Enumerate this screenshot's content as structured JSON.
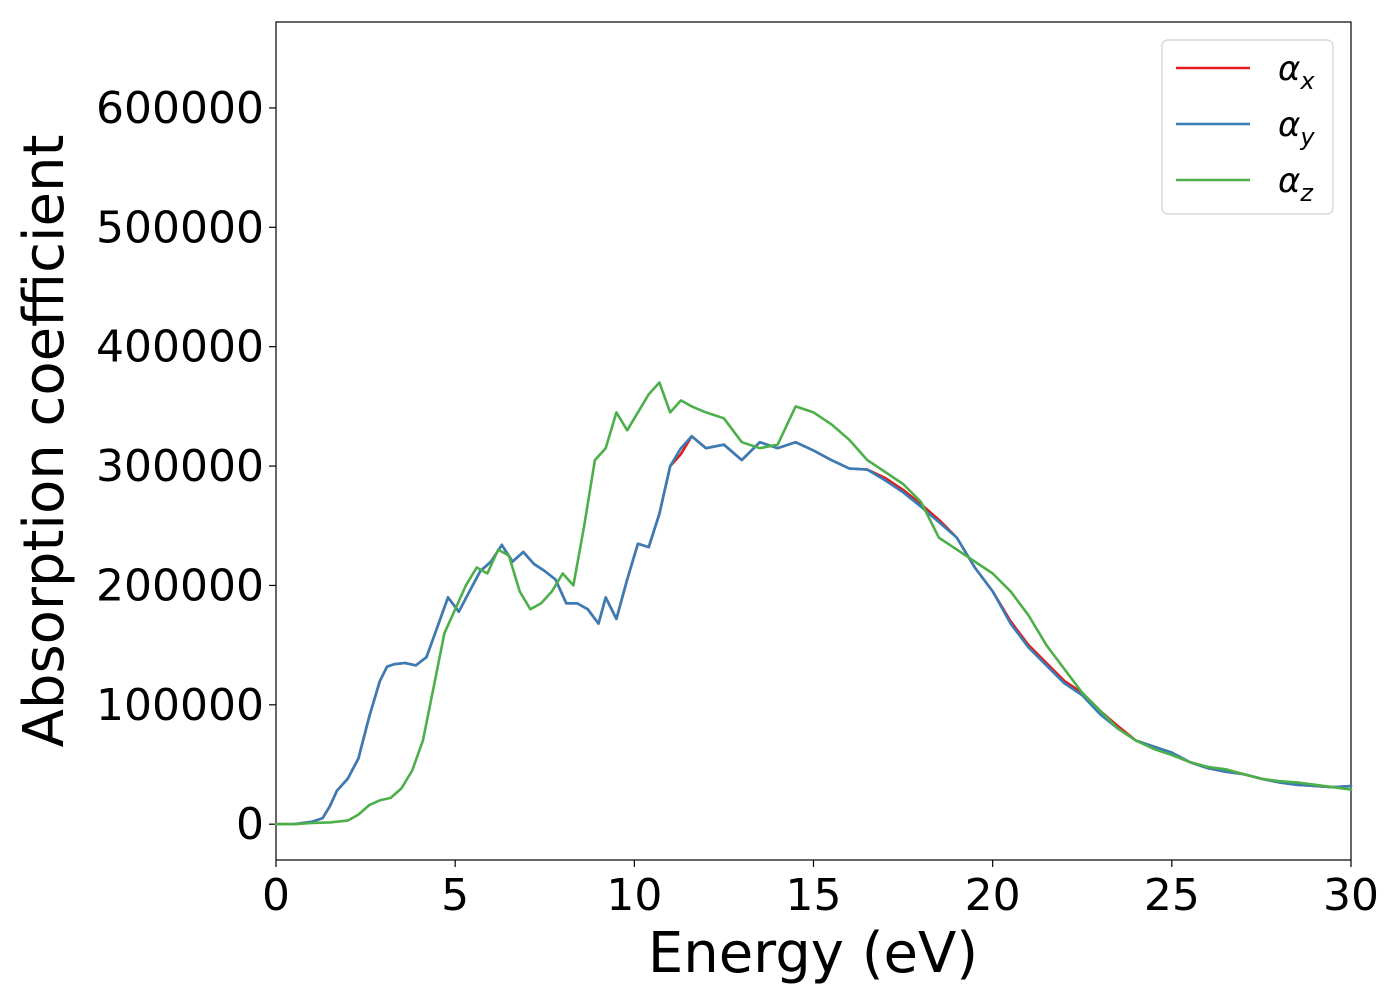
{
  "chart_data": {
    "type": "line",
    "xlabel": "Energy (eV)",
    "ylabel": "Absorption coefficient",
    "xlim": [
      0,
      30
    ],
    "ylim": [
      -30000,
      672000
    ],
    "xticks": [
      0,
      5,
      10,
      15,
      20,
      25,
      30
    ],
    "yticks": [
      0,
      100000,
      200000,
      300000,
      400000,
      500000,
      600000
    ],
    "grid": false,
    "legend_position": "top-right",
    "series": [
      {
        "name": "α_x",
        "name_base": "α",
        "name_sub": "x",
        "color": "#e41a1c",
        "x": [
          0,
          0.5,
          1,
          1.3,
          1.5,
          1.7,
          2,
          2.3,
          2.6,
          2.9,
          3.1,
          3.3,
          3.6,
          3.9,
          4.2,
          4.5,
          4.8,
          5.1,
          5.4,
          5.7,
          6,
          6.3,
          6.6,
          6.9,
          7.2,
          7.5,
          7.8,
          8.1,
          8.4,
          8.7,
          9,
          9.2,
          9.5,
          9.8,
          10.1,
          10.4,
          10.7,
          11,
          11.3,
          11.6,
          12,
          12.5,
          13,
          13.5,
          14,
          14.5,
          15,
          15.5,
          16,
          16.5,
          17,
          17.5,
          18,
          18.5,
          19,
          19.5,
          20,
          20.5,
          21,
          21.5,
          22,
          22.5,
          23,
          23.5,
          24,
          24.5,
          25,
          25.5,
          26,
          26.5,
          27,
          27.5,
          28,
          28.5,
          29,
          29.5,
          30
        ],
        "y": [
          0,
          0,
          2000,
          5000,
          15000,
          28000,
          38000,
          55000,
          90000,
          120000,
          132000,
          134000,
          135000,
          133000,
          140000,
          165000,
          190000,
          178000,
          195000,
          212000,
          220000,
          234000,
          220000,
          228000,
          218000,
          212000,
          205000,
          185000,
          185000,
          180000,
          168000,
          190000,
          172000,
          205000,
          235000,
          232000,
          260000,
          300000,
          310000,
          325000,
          315000,
          318000,
          305000,
          320000,
          315000,
          320000,
          313000,
          305000,
          298000,
          297000,
          290000,
          280000,
          268000,
          255000,
          240000,
          215000,
          195000,
          170000,
          150000,
          135000,
          120000,
          110000,
          95000,
          82000,
          70000,
          65000,
          60000,
          52000,
          47000,
          44000,
          42000,
          38000,
          35000,
          33000,
          32000,
          31000,
          32000
        ]
      },
      {
        "name": "α_y",
        "name_base": "α",
        "name_sub": "y",
        "color": "#377eb8",
        "x": [
          0,
          0.5,
          1,
          1.3,
          1.5,
          1.7,
          2,
          2.3,
          2.6,
          2.9,
          3.1,
          3.3,
          3.6,
          3.9,
          4.2,
          4.5,
          4.8,
          5.1,
          5.4,
          5.7,
          6,
          6.3,
          6.6,
          6.9,
          7.2,
          7.5,
          7.8,
          8.1,
          8.4,
          8.7,
          9,
          9.2,
          9.5,
          9.8,
          10.1,
          10.4,
          10.7,
          11,
          11.3,
          11.6,
          12,
          12.5,
          13,
          13.5,
          14,
          14.5,
          15,
          15.5,
          16,
          16.5,
          17,
          17.5,
          18,
          18.5,
          19,
          19.5,
          20,
          20.5,
          21,
          21.5,
          22,
          22.5,
          23,
          23.5,
          24,
          24.5,
          25,
          25.5,
          26,
          26.5,
          27,
          27.5,
          28,
          28.5,
          29,
          29.5,
          30
        ],
        "y": [
          0,
          0,
          2000,
          5000,
          15000,
          28000,
          38000,
          55000,
          90000,
          120000,
          132000,
          134000,
          135000,
          133000,
          140000,
          165000,
          190000,
          178000,
          195000,
          212000,
          220000,
          234000,
          220000,
          228000,
          218000,
          212000,
          205000,
          185000,
          185000,
          180000,
          168000,
          190000,
          172000,
          205000,
          235000,
          232000,
          260000,
          300000,
          315000,
          325000,
          315000,
          318000,
          305000,
          320000,
          315000,
          320000,
          313000,
          305000,
          298000,
          297000,
          288000,
          278000,
          266000,
          253000,
          240000,
          215000,
          195000,
          168000,
          148000,
          133000,
          118000,
          108000,
          92000,
          80000,
          70000,
          65000,
          60000,
          52000,
          47000,
          44000,
          42000,
          38000,
          35000,
          33000,
          32000,
          31000,
          32000
        ]
      },
      {
        "name": "α_z",
        "name_base": "α",
        "name_sub": "z",
        "color": "#4daf4a",
        "x": [
          0,
          0.5,
          1,
          1.5,
          2,
          2.3,
          2.6,
          2.9,
          3.2,
          3.5,
          3.8,
          4.1,
          4.4,
          4.7,
          5,
          5.3,
          5.6,
          5.9,
          6.2,
          6.5,
          6.8,
          7.1,
          7.4,
          7.7,
          8,
          8.3,
          8.6,
          8.9,
          9.2,
          9.5,
          9.8,
          10.1,
          10.4,
          10.7,
          11,
          11.3,
          11.6,
          12,
          12.5,
          13,
          13.5,
          14,
          14.5,
          15,
          15.5,
          16,
          16.5,
          17,
          17.5,
          18,
          18.5,
          19,
          19.5,
          20,
          20.5,
          21,
          21.5,
          22,
          22.5,
          23,
          23.5,
          24,
          24.5,
          25,
          25.5,
          26,
          26.5,
          27,
          27.5,
          28,
          28.5,
          29,
          29.5,
          30
        ],
        "y": [
          0,
          0,
          1000,
          1500,
          3000,
          8000,
          16000,
          20000,
          22000,
          30000,
          45000,
          70000,
          115000,
          160000,
          180000,
          200000,
          215000,
          210000,
          230000,
          225000,
          195000,
          180000,
          185000,
          195000,
          210000,
          200000,
          250000,
          305000,
          315000,
          345000,
          330000,
          345000,
          360000,
          370000,
          345000,
          355000,
          350000,
          345000,
          340000,
          320000,
          315000,
          318000,
          350000,
          345000,
          335000,
          322000,
          305000,
          295000,
          285000,
          270000,
          240000,
          230000,
          220000,
          210000,
          195000,
          175000,
          150000,
          130000,
          110000,
          95000,
          80000,
          70000,
          63000,
          58000,
          52000,
          48000,
          46000,
          42000,
          38000,
          36000,
          35000,
          33000,
          31000,
          29000
        ]
      }
    ]
  }
}
